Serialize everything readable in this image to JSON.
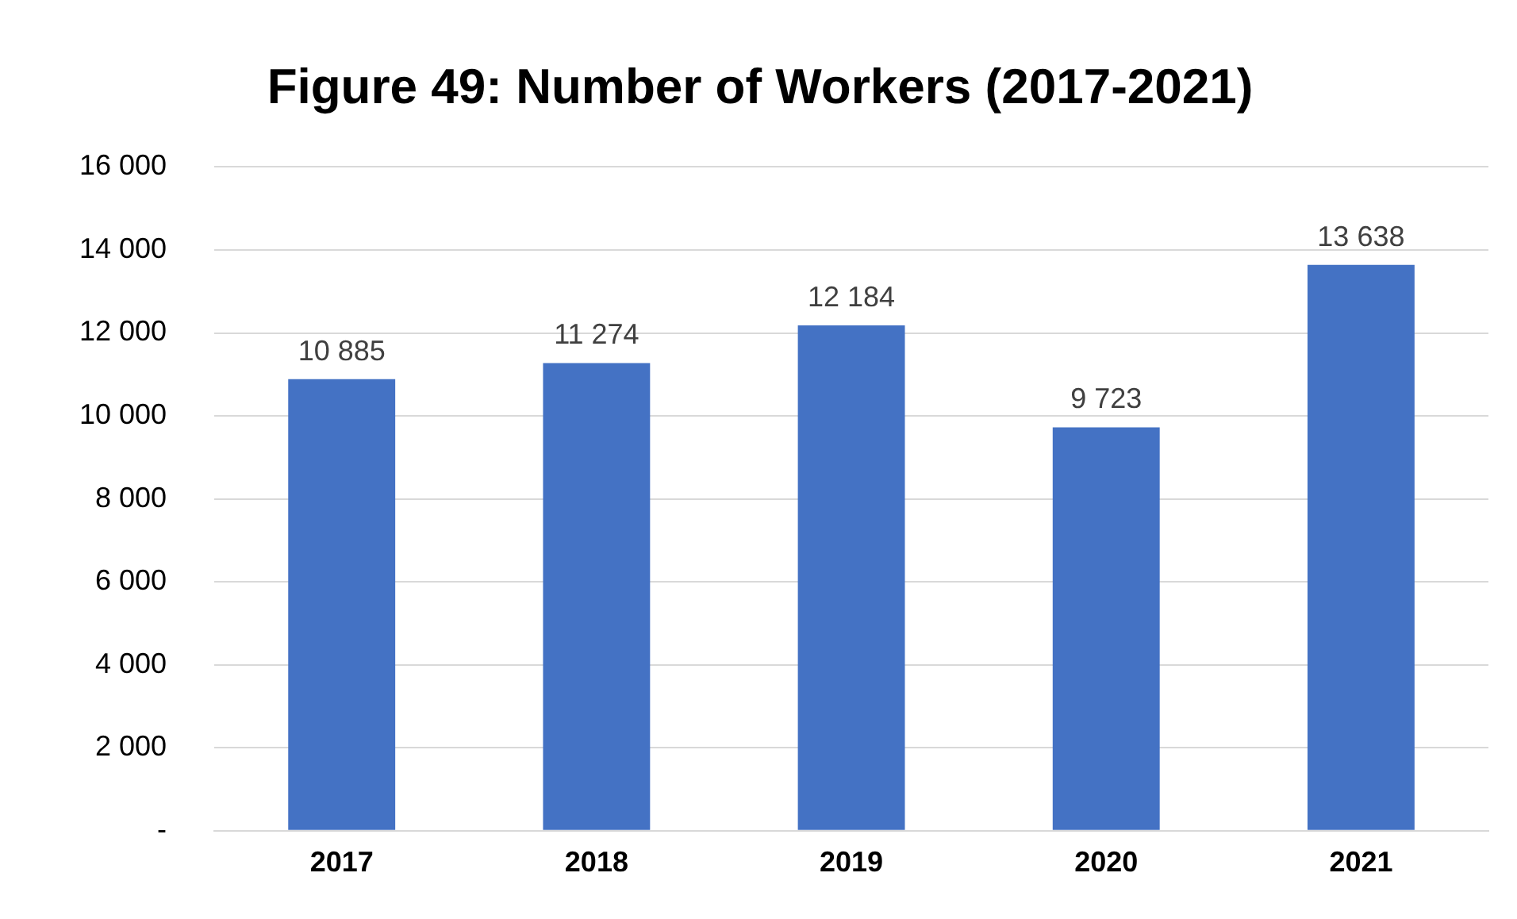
{
  "chart_data": {
    "type": "bar",
    "title": "Figure 49: Number of Workers (2017-2021)",
    "categories": [
      "2017",
      "2018",
      "2019",
      "2020",
      "2021"
    ],
    "values": [
      10885,
      11274,
      12184,
      9723,
      13638
    ],
    "value_labels": [
      "10 885",
      "11 274",
      "12 184",
      "9 723",
      "13 638"
    ],
    "color": "#4472c4",
    "ylim": [
      0,
      16000
    ],
    "yticks": [
      {
        "value": 0,
        "label": "-"
      },
      {
        "value": 2000,
        "label": "2 000"
      },
      {
        "value": 4000,
        "label": "4 000"
      },
      {
        "value": 6000,
        "label": "6 000"
      },
      {
        "value": 8000,
        "label": "8 000"
      },
      {
        "value": 10000,
        "label": "10 000"
      },
      {
        "value": 12000,
        "label": "12 000"
      },
      {
        "value": 14000,
        "label": "14 000"
      },
      {
        "value": 16000,
        "label": "16 000"
      }
    ],
    "grid": "y"
  }
}
